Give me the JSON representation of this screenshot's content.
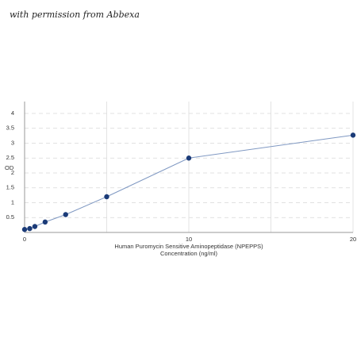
{
  "chart_data": {
    "type": "line",
    "watermark": "with permission from Abbexa",
    "ylabel": "OD",
    "xlabel": [
      "Human Puromycin Sensitive Aminopeptidase (NPEPPS)",
      "Concentration (ng/ml)"
    ],
    "x": [
      0,
      0.3125,
      0.625,
      1.25,
      2.5,
      5,
      10,
      20
    ],
    "values": [
      0.1,
      0.13,
      0.2,
      0.35,
      0.6,
      1.2,
      2.5,
      3.27
    ],
    "color": "#1b3b78",
    "line_color": "#7f98c2",
    "xlim": [
      0,
      20
    ],
    "ylim": [
      0,
      4.4
    ],
    "xticks": [
      0,
      10,
      20
    ],
    "x_minor_grid": [
      5,
      15
    ],
    "yticks": [
      0.5,
      1,
      1.5,
      2,
      2.5,
      3,
      3.5,
      4
    ],
    "grid": true
  }
}
